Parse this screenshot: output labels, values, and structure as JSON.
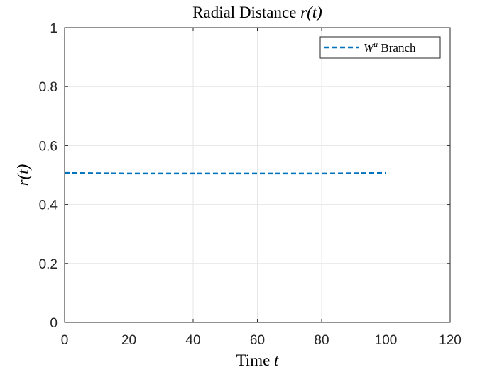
{
  "chart_data": {
    "type": "line",
    "title_main": "Radial Distance ",
    "title_math": "r(t)",
    "xlabel_main": "Time ",
    "xlabel_math": "t",
    "ylabel": "r(t)",
    "xlim": [
      0,
      120
    ],
    "ylim": [
      0,
      1
    ],
    "xticks": [
      0,
      20,
      40,
      60,
      80,
      100,
      120
    ],
    "yticks": [
      0,
      0.2,
      0.4,
      0.6,
      0.8,
      1
    ],
    "xtick_labels": [
      "0",
      "20",
      "40",
      "60",
      "80",
      "100",
      "120"
    ],
    "ytick_labels": [
      "0",
      "0.2",
      "0.4",
      "0.6",
      "0.8",
      "1"
    ],
    "grid": true,
    "legend_position": "top-right",
    "series": [
      {
        "name": "W^u Branch",
        "name_base": "W",
        "name_sup": "u",
        "name_rest": " Branch",
        "color": "#0072BD",
        "style": "dashed",
        "x": [
          0,
          10,
          20,
          30,
          40,
          50,
          60,
          70,
          80,
          90,
          100
        ],
        "y": [
          0.507,
          0.506,
          0.505,
          0.505,
          0.505,
          0.505,
          0.505,
          0.505,
          0.505,
          0.506,
          0.507
        ]
      }
    ]
  }
}
